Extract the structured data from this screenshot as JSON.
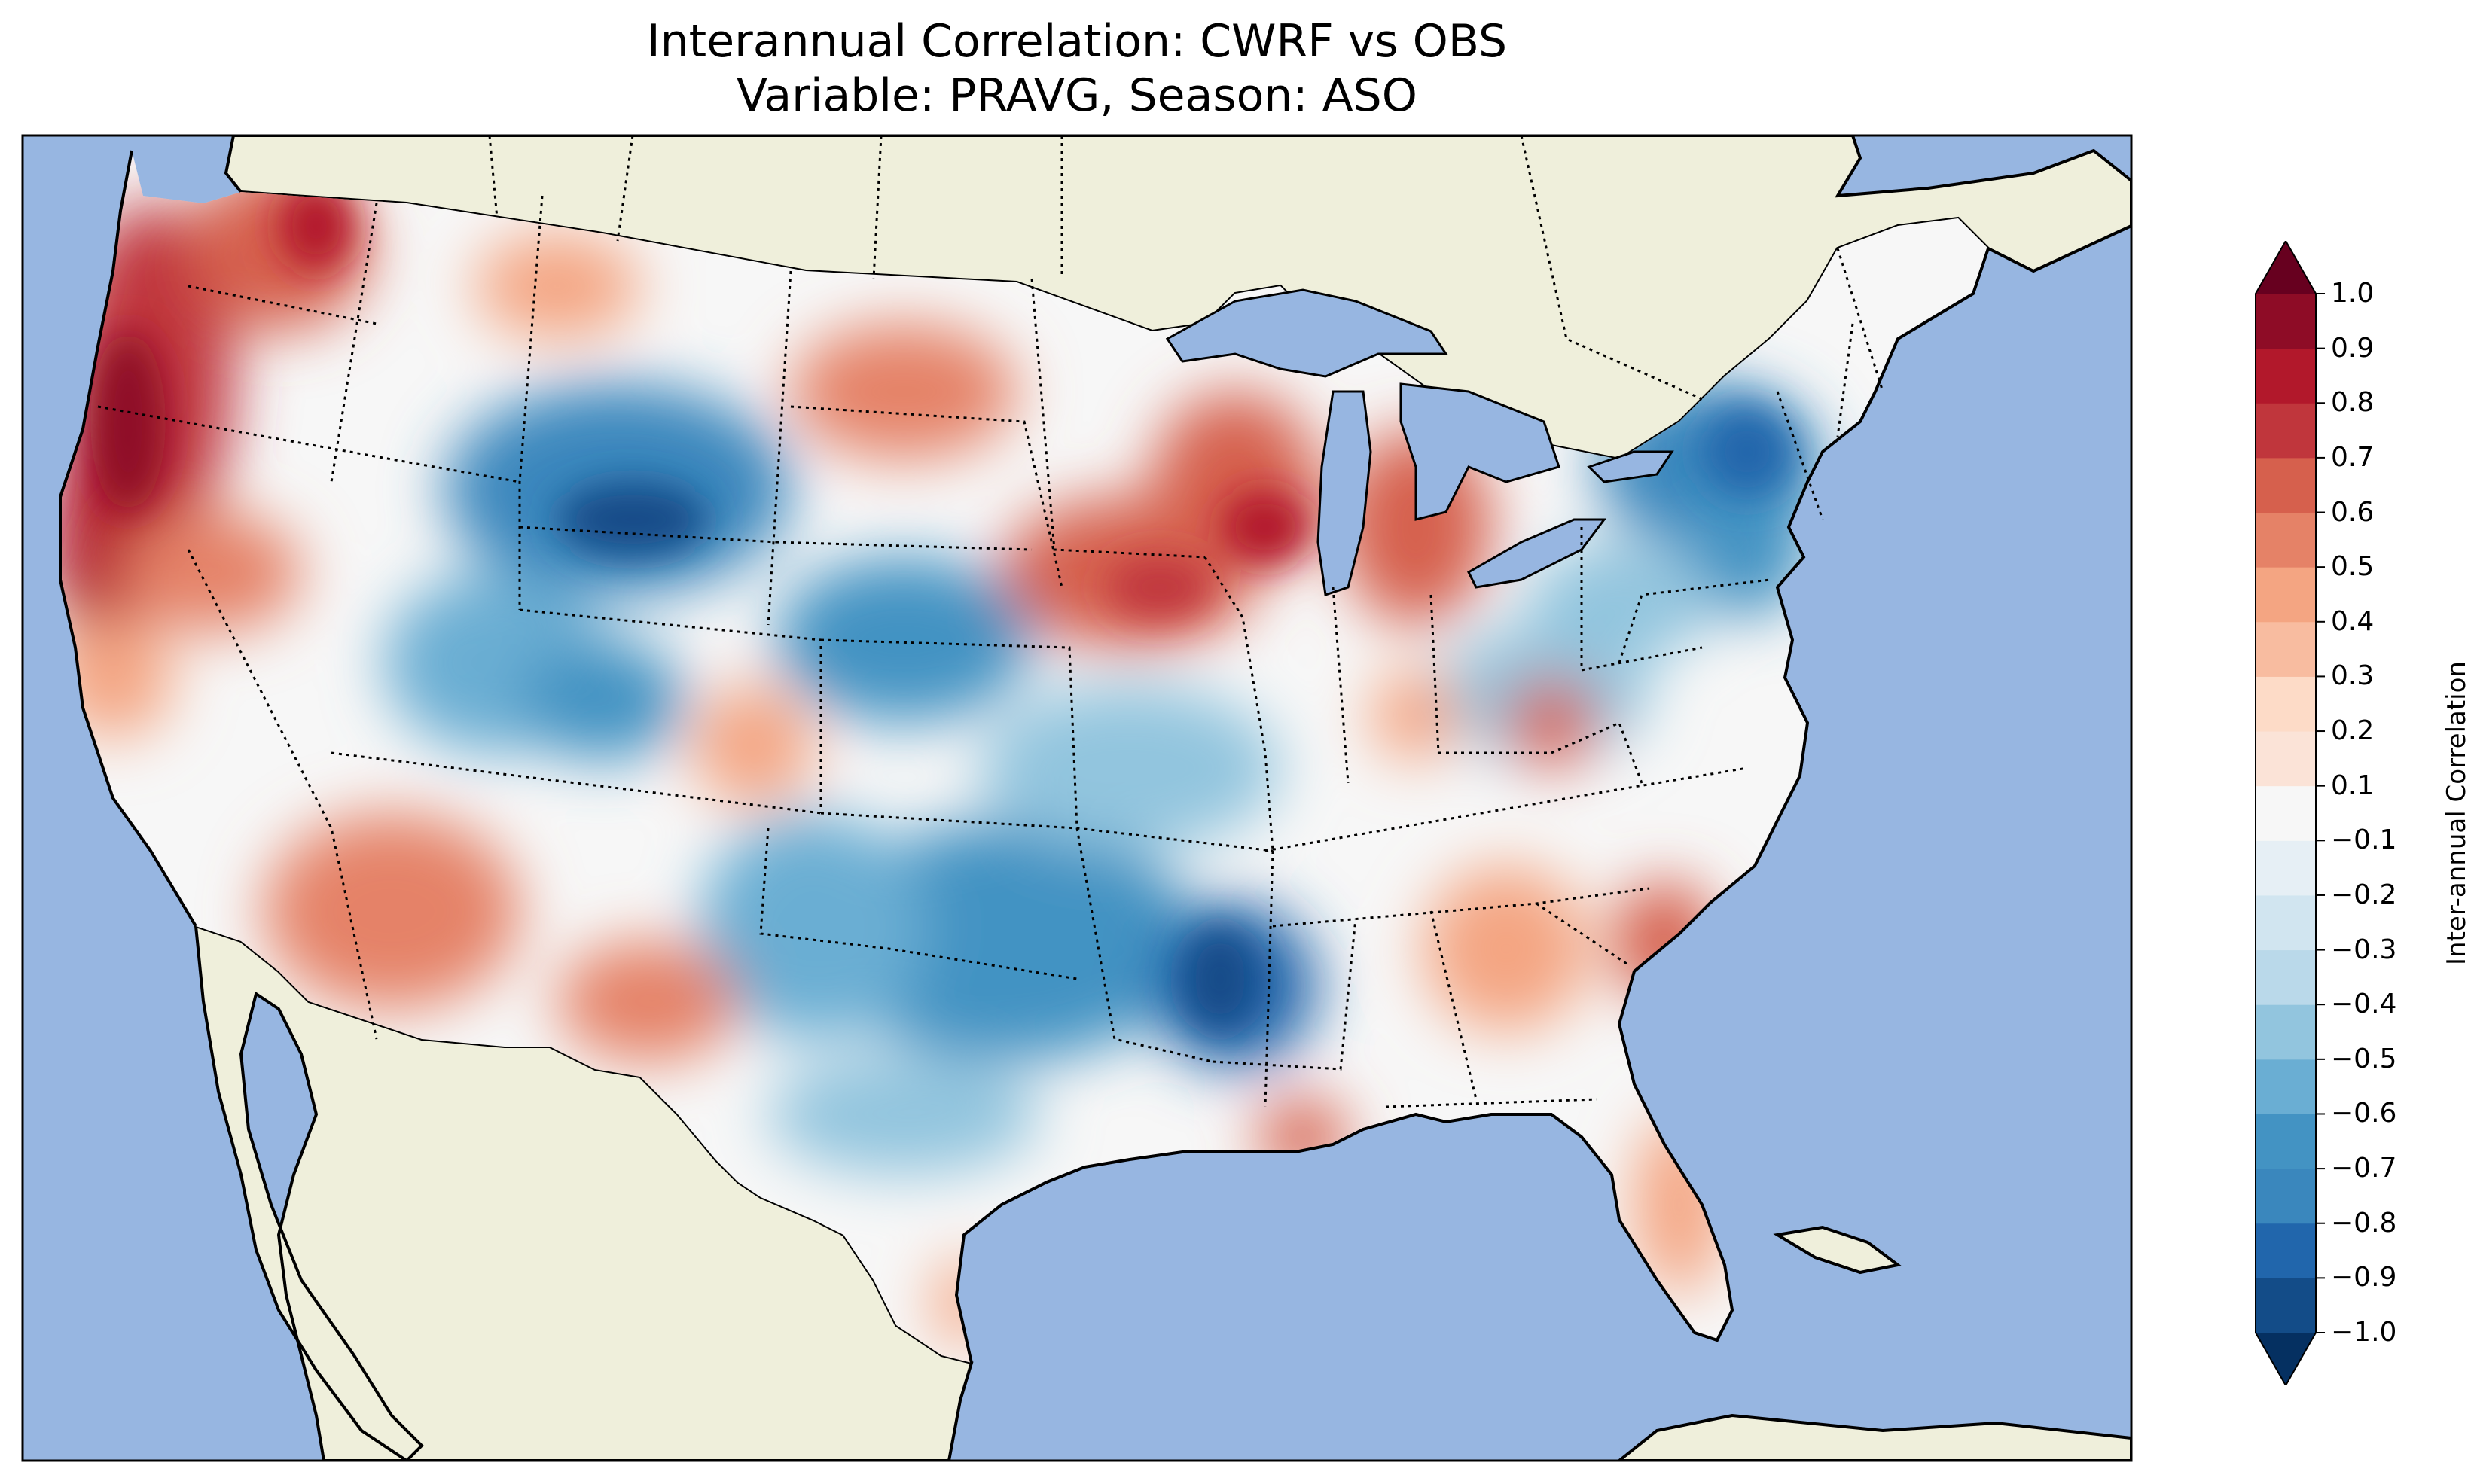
{
  "title": {
    "line1": "Interannual Correlation: CWRF vs OBS",
    "line2": "Variable: PRAVG, Season: ASO"
  },
  "map": {
    "ocean_color": "#97b6e1",
    "land_color": "#efefdb",
    "coast_color": "#000000",
    "border_style": "dotted"
  },
  "colorbar": {
    "label": "Inter-annual Correlation",
    "cmap": "RdBu_r",
    "extend": "both",
    "levels": [
      -1.0,
      -0.9,
      -0.8,
      -0.7,
      -0.6,
      -0.5,
      -0.4,
      -0.3,
      -0.2,
      -0.1,
      0.1,
      0.2,
      0.3,
      0.4,
      0.5,
      0.6,
      0.7,
      0.8,
      0.9,
      1.0
    ],
    "tick_labels": [
      "1.0",
      "0.9",
      "0.8",
      "0.7",
      "0.6",
      "0.5",
      "0.4",
      "0.3",
      "0.2",
      "0.1",
      "−0.1",
      "−0.2",
      "−0.3",
      "−0.4",
      "−0.5",
      "−0.6",
      "−0.7",
      "−0.8",
      "−0.9",
      "−1.0"
    ],
    "colors": [
      "#053061",
      "#134c88",
      "#2166ac",
      "#3a87bd",
      "#4393c3",
      "#6aaed3",
      "#92c5de",
      "#bad9ea",
      "#d1e5f0",
      "#e6eff5",
      "#f7f7f7",
      "#fbe3d7",
      "#fddbc7",
      "#f8bca0",
      "#f4a582",
      "#e58267",
      "#d6604d",
      "#c0363c",
      "#b2182b",
      "#8e0c26",
      "#67001f"
    ]
  },
  "chart_data": {
    "type": "heatmap",
    "title": "Interannual Correlation: CWRF vs OBS\nVariable: PRAVG, Season: ASO",
    "variable": "PRAVG",
    "season": "ASO",
    "colorbar_label": "Inter-annual Correlation",
    "vmin": -1.0,
    "vmax": 1.0,
    "levels": [
      -1.0,
      -0.9,
      -0.8,
      -0.7,
      -0.6,
      -0.5,
      -0.4,
      -0.3,
      -0.2,
      -0.1,
      0.1,
      0.2,
      0.3,
      0.4,
      0.5,
      0.6,
      0.7,
      0.8,
      0.9,
      1.0
    ]
  }
}
